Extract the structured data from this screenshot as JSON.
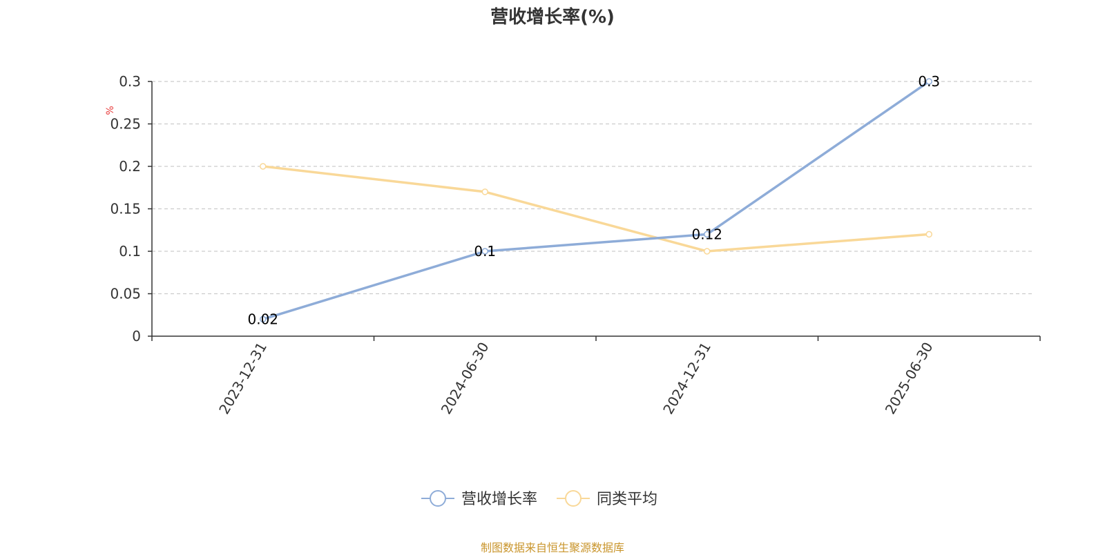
{
  "chart_data": {
    "type": "line",
    "title": "营收增长率(%)",
    "ylabel": "%",
    "xlabel": "",
    "categories": [
      "2023-12-31",
      "2024-06-30",
      "2024-12-31",
      "2025-06-30"
    ],
    "ylim": [
      0,
      0.3
    ],
    "yticks": [
      0,
      0.05,
      0.1,
      0.15,
      0.2,
      0.25,
      0.3
    ],
    "ytick_labels": [
      "0",
      "0.05",
      "0.1",
      "0.15",
      "0.2",
      "0.25",
      "0.3"
    ],
    "grid": true,
    "legend_position": "bottom",
    "series": [
      {
        "name": "营收增长率",
        "values": [
          0.02,
          0.1,
          0.12,
          0.3
        ],
        "data_labels": [
          "0.02",
          "0.1",
          "0.12",
          "0.3"
        ],
        "color": "#8eacd8"
      },
      {
        "name": "同类平均",
        "values": [
          0.2,
          0.17,
          0.1,
          0.12
        ],
        "color": "#f9d898"
      }
    ]
  },
  "source_note": "制图数据来自恒生聚源数据库"
}
